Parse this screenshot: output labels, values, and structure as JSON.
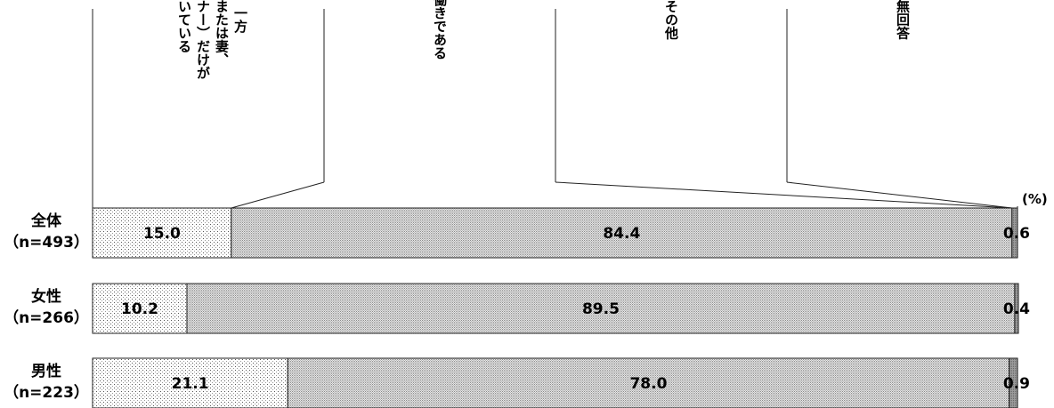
{
  "chart_data": {
    "type": "bar",
    "stacked": true,
    "orientation": "horizontal",
    "unit": "(%)",
    "categories": [
      [
        "全体",
        "（n=493）"
      ],
      [
        "女性",
        "（n=266）"
      ],
      [
        "男性",
        "（n=223）"
      ]
    ],
    "series": [
      {
        "name": "一方（夫または妻、パートナー）だけが働いている",
        "values": [
          15.0,
          10.2,
          21.1
        ],
        "pattern": "sparse-dots",
        "show_labels": true
      },
      {
        "name": "共働きである",
        "values": [
          84.4,
          89.5,
          78.0
        ],
        "pattern": "dense-dots",
        "show_labels": true
      },
      {
        "name": "その他",
        "values": [
          0.0,
          0.0,
          0.0
        ],
        "pattern": "none",
        "show_labels": false
      },
      {
        "name": "無回答",
        "values": [
          0.6,
          0.4,
          0.9
        ],
        "pattern": "gray",
        "show_labels": true
      }
    ],
    "legend_columns": [
      [
        "一方",
        "（夫または妻、",
        "パートナー）だけが",
        "働いている"
      ],
      [
        "共働きである"
      ],
      [
        "その他"
      ],
      [
        "無回答"
      ]
    ],
    "xlim": [
      0,
      100
    ],
    "grid": false,
    "legend": "top"
  }
}
